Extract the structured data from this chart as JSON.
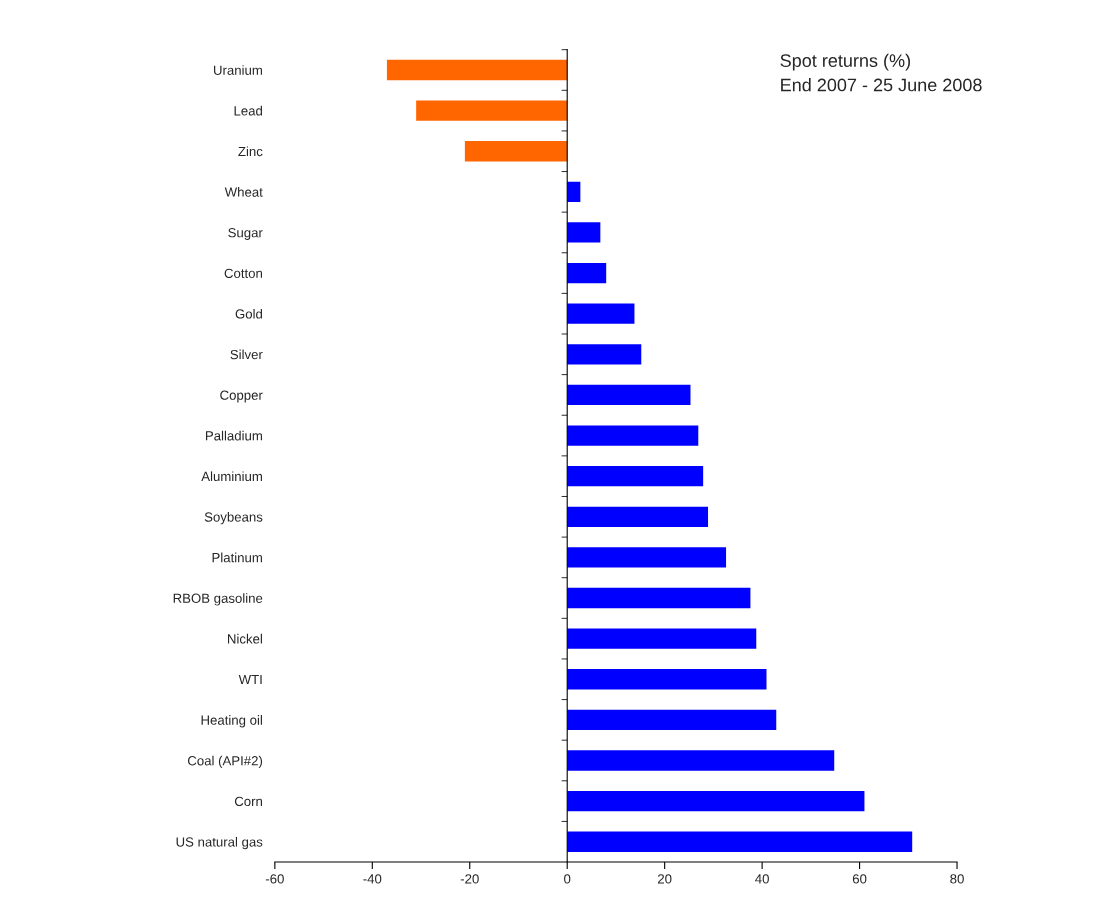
{
  "chart_data": {
    "type": "bar",
    "orientation": "horizontal",
    "title": "Spot returns (%)",
    "subtitle": "End 2007 - 25 June 2008",
    "categories": [
      "Uranium",
      "Lead",
      "Zinc",
      "Wheat",
      "Sugar",
      "Cotton",
      "Gold",
      "Silver",
      "Copper",
      "Palladium",
      "Aluminium",
      "Soybeans",
      "Platinum",
      "RBOB gasoline",
      "Nickel",
      "WTI",
      "Heating oil",
      "Coal (API#2)",
      "Corn",
      "US natural gas"
    ],
    "values": [
      -37,
      -31,
      -21,
      2.7,
      6.8,
      8,
      13.8,
      15.2,
      25.3,
      26.9,
      27.9,
      28.9,
      32.6,
      37.6,
      38.8,
      40.9,
      42.9,
      54.8,
      61,
      70.8
    ],
    "colors": [
      "#ff6600",
      "#ff6600",
      "#ff6600",
      "#0000ff",
      "#0000ff",
      "#0000ff",
      "#0000ff",
      "#0000ff",
      "#0000ff",
      "#0000ff",
      "#0000ff",
      "#0000ff",
      "#0000ff",
      "#0000ff",
      "#0000ff",
      "#0000ff",
      "#0000ff",
      "#0000ff",
      "#0000ff",
      "#0000ff"
    ],
    "xlim": [
      -60,
      80
    ],
    "xticks": [
      -60,
      -40,
      -20,
      0,
      20,
      40,
      60,
      80
    ],
    "legend": false
  }
}
